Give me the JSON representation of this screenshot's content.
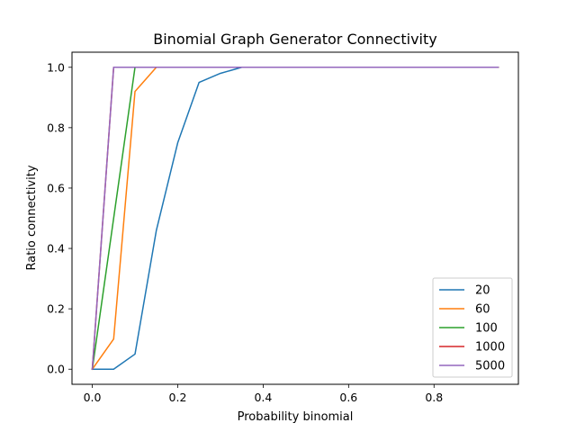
{
  "chart_data": {
    "type": "line",
    "title": "Binomial Graph Generator Connectivity",
    "xlabel": "Probability binomial",
    "ylabel": "Ratio connectivity",
    "xlim": [
      -0.0475,
      0.9975
    ],
    "ylim": [
      -0.05,
      1.05
    ],
    "xticks": [
      "0.0",
      "0.2",
      "0.4",
      "0.6",
      "0.8"
    ],
    "xtick_values": [
      0.0,
      0.2,
      0.4,
      0.6,
      0.8
    ],
    "yticks": [
      "0.0",
      "0.2",
      "0.4",
      "0.6",
      "0.8",
      "1.0"
    ],
    "ytick_values": [
      0.0,
      0.2,
      0.4,
      0.6,
      0.8,
      1.0
    ],
    "grid": false,
    "legend_position": "lower-right",
    "x": [
      0.0,
      0.05,
      0.1,
      0.15,
      0.2,
      0.25,
      0.3,
      0.35,
      0.4,
      0.45,
      0.5,
      0.55,
      0.6,
      0.65,
      0.7,
      0.75,
      0.8,
      0.85,
      0.9,
      0.95
    ],
    "series": [
      {
        "name": "20",
        "color": "#1f77b4",
        "values": [
          0.0,
          0.0,
          0.05,
          0.46,
          0.75,
          0.95,
          0.98,
          1.0,
          1.0,
          1.0,
          1.0,
          1.0,
          1.0,
          1.0,
          1.0,
          1.0,
          1.0,
          1.0,
          1.0,
          1.0
        ]
      },
      {
        "name": "60",
        "color": "#ff7f0e",
        "values": [
          0.0,
          0.1,
          0.92,
          1.0,
          1.0,
          1.0,
          1.0,
          1.0,
          1.0,
          1.0,
          1.0,
          1.0,
          1.0,
          1.0,
          1.0,
          1.0,
          1.0,
          1.0,
          1.0,
          1.0
        ]
      },
      {
        "name": "100",
        "color": "#2ca02c",
        "values": [
          0.0,
          0.5,
          1.0,
          1.0,
          1.0,
          1.0,
          1.0,
          1.0,
          1.0,
          1.0,
          1.0,
          1.0,
          1.0,
          1.0,
          1.0,
          1.0,
          1.0,
          1.0,
          1.0,
          1.0
        ]
      },
      {
        "name": "1000",
        "color": "#d62728",
        "values": [
          0.0,
          1.0,
          1.0,
          1.0,
          1.0,
          1.0,
          1.0,
          1.0,
          1.0,
          1.0,
          1.0,
          1.0,
          1.0,
          1.0,
          1.0,
          1.0,
          1.0,
          1.0,
          1.0,
          1.0
        ]
      },
      {
        "name": "5000",
        "color": "#9467bd",
        "values": [
          0.0,
          1.0,
          1.0,
          1.0,
          1.0,
          1.0,
          1.0,
          1.0,
          1.0,
          1.0,
          1.0,
          1.0,
          1.0,
          1.0,
          1.0,
          1.0,
          1.0,
          1.0,
          1.0,
          1.0
        ]
      }
    ]
  }
}
